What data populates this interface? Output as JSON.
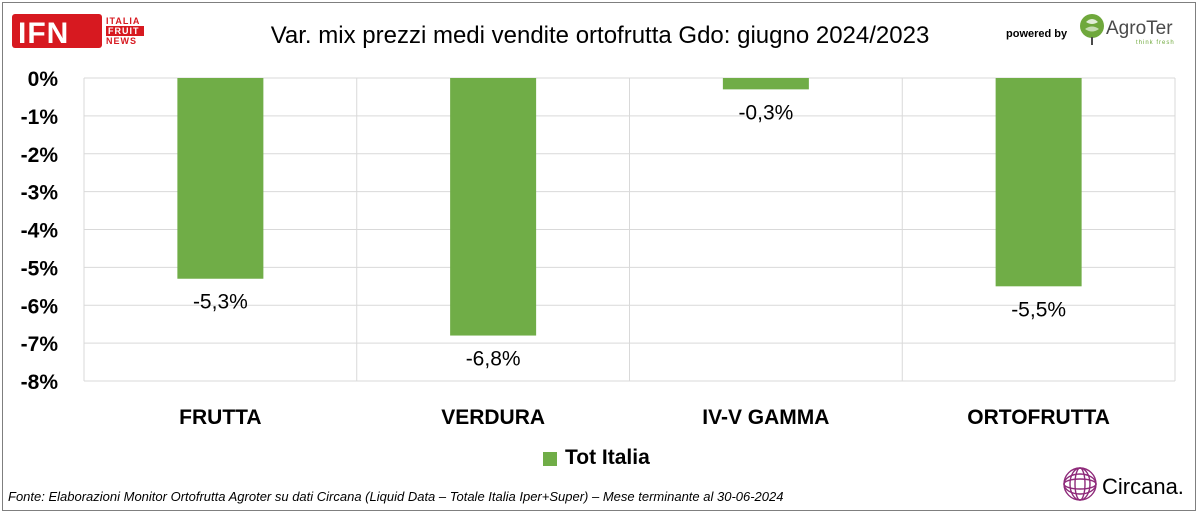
{
  "header": {
    "title": "Var. mix prezzi medi vendite ortofrutta Gdo: giugno 2024/2023",
    "powered_by": "powered by"
  },
  "logos": {
    "ifn": {
      "main": "IFN",
      "line1": "ITALIA",
      "line2": "FRUIT",
      "line3": "NEWS",
      "brand_color": "#d71920"
    },
    "agroter": {
      "name": "AgroTer",
      "tagline": "think fresh",
      "icon": "globe-leaf-icon",
      "color": "#6fa83c"
    },
    "circana": {
      "name": "Circana.",
      "icon": "sphere-lines-icon",
      "color": "#8e2a7a"
    }
  },
  "footer": {
    "source": "Fonte: Elaborazioni Monitor Ortofrutta Agroter su dati Circana (Liquid Data – Totale Italia Iper+Super) – Mese terminante al 30-06-2024"
  },
  "chart_data": {
    "type": "bar",
    "title": "Var. mix prezzi medi vendite ortofrutta Gdo: giugno 2024/2023",
    "categories": [
      "FRUTTA",
      "VERDURA",
      "IV-V GAMMA",
      "ORTOFRUTTA"
    ],
    "series": [
      {
        "name": "Tot Italia",
        "values": [
          -5.3,
          -6.8,
          -0.3,
          -5.5
        ],
        "color": "#70ad47"
      }
    ],
    "data_labels": [
      "-5,3%",
      "-6,8%",
      "-0,3%",
      "-5,5%"
    ],
    "yticks": [
      "0%",
      "-1%",
      "-2%",
      "-3%",
      "-4%",
      "-5%",
      "-6%",
      "-7%",
      "-8%"
    ],
    "ytick_values": [
      0,
      -1,
      -2,
      -3,
      -4,
      -5,
      -6,
      -7,
      -8
    ],
    "ylim": [
      -8,
      0
    ],
    "xlabel": "",
    "ylabel": "",
    "grid": true,
    "legend_position": "bottom-center"
  }
}
